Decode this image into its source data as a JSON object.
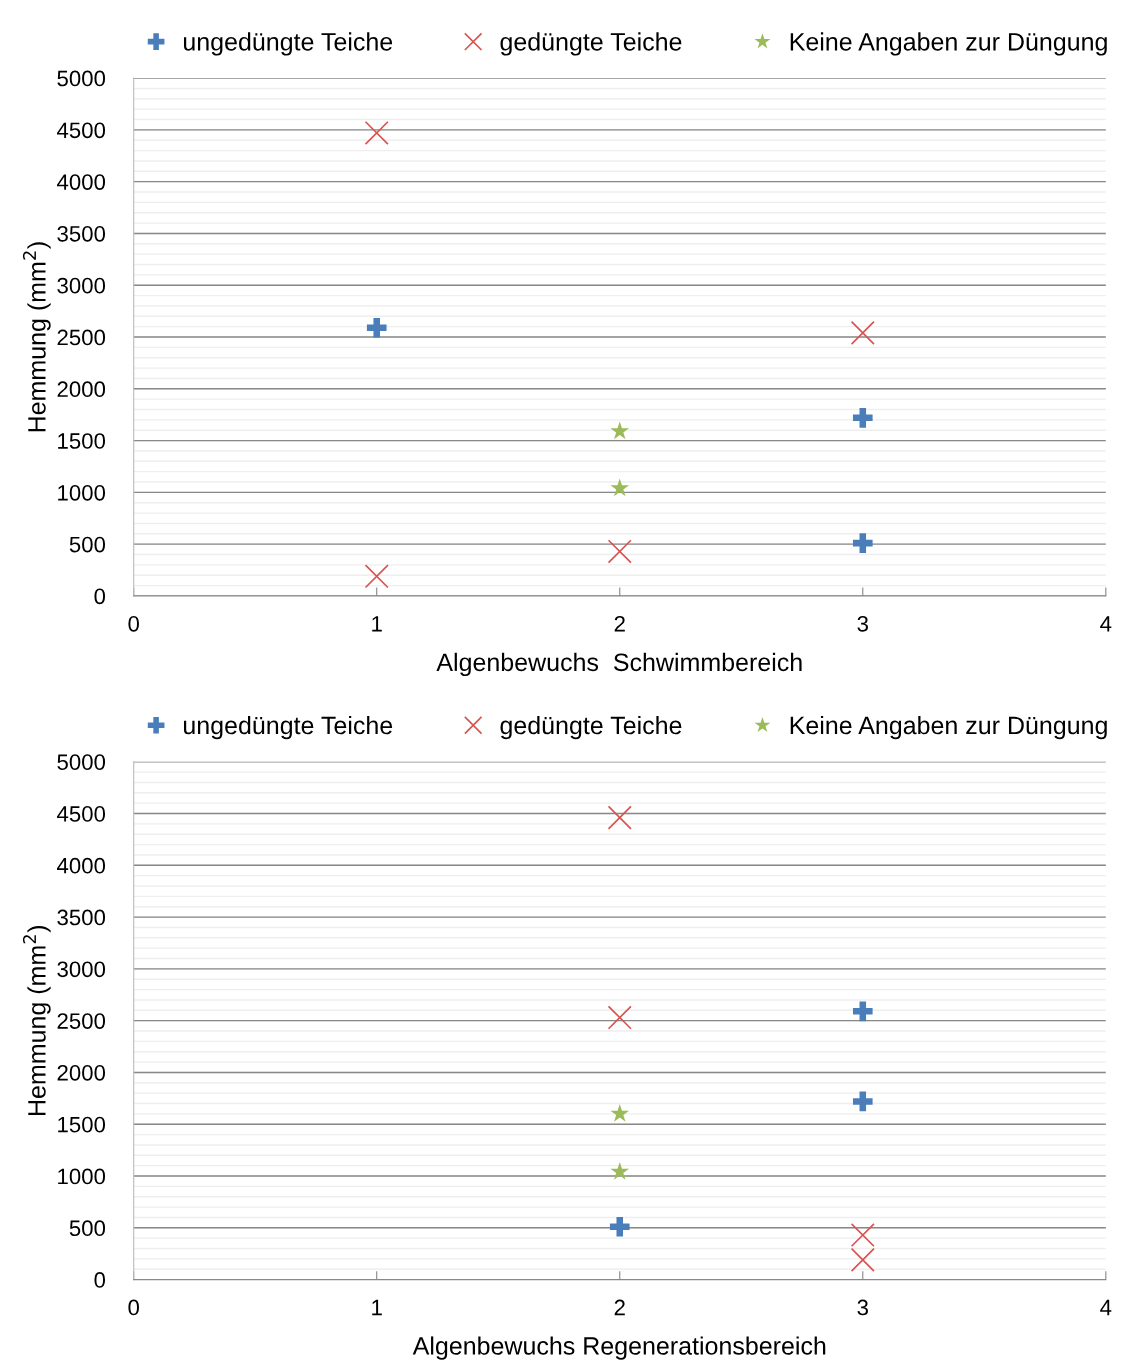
{
  "chart_data": [
    {
      "type": "scatter",
      "xlabel": "Algenbewuchs  Schwimmbereich",
      "ylabel": "Hemmung (mm$^{2}$)",
      "xlim": [
        0,
        4
      ],
      "xticks": [
        0,
        1,
        2,
        3,
        4
      ],
      "ylim": [
        0,
        5000
      ],
      "yticks": [
        0,
        500,
        1000,
        1500,
        2000,
        2500,
        3000,
        3500,
        4000,
        4500,
        5000
      ],
      "grid": "y",
      "legend": "top",
      "series": [
        {
          "name": "ungedüngte Teiche",
          "color": "#4a7ebb",
          "x": [
            1,
            3,
            3
          ],
          "values": [
            2590,
            1720,
            510
          ]
        },
        {
          "name": "gedüngte Teiche",
          "color": "#d9534f",
          "marker": "cross",
          "x": [
            1,
            3,
            2,
            1
          ],
          "values": [
            4470,
            2540,
            430,
            190
          ]
        },
        {
          "name": "Keine Angaben zur Düngung",
          "color": "#9bbb59",
          "marker": "star",
          "x": [
            2,
            2
          ],
          "values": [
            1590,
            1040
          ]
        }
      ]
    },
    {
      "type": "scatter",
      "xlabel": "Algenbewuchs Regenerationsbereich",
      "ylabel": "Hemmung (mm$^{2}$)",
      "xlim": [
        0,
        4
      ],
      "xticks": [
        0,
        1,
        2,
        3,
        4
      ],
      "ylim": [
        0,
        5000
      ],
      "yticks": [
        0,
        500,
        1000,
        1500,
        2000,
        2500,
        3000,
        3500,
        4000,
        4500,
        5000
      ],
      "grid": "y",
      "legend": "top",
      "series": [
        {
          "name": "ungedüngte Teiche",
          "color": "#4a7ebb",
          "x": [
            3,
            3,
            2
          ],
          "values": [
            2590,
            1720,
            510
          ]
        },
        {
          "name": "gedüngte Teiche",
          "color": "#d9534f",
          "marker": "cross",
          "x": [
            2,
            2,
            3,
            3
          ],
          "values": [
            4460,
            2530,
            430,
            190
          ]
        },
        {
          "name": "Keine Angaben zur Düngung",
          "color": "#9bbb59",
          "marker": "star",
          "x": [
            2,
            2
          ],
          "values": [
            1600,
            1040
          ]
        }
      ]
    }
  ]
}
